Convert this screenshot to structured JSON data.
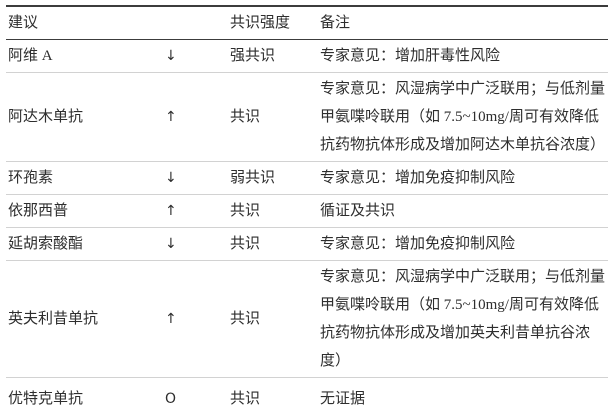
{
  "table": {
    "headers": {
      "recommendation": "建议",
      "direction": "",
      "strength": "共识强度",
      "remark": "备注"
    },
    "rows": [
      {
        "drug": "阿维 A",
        "direction": "↓",
        "strength": "强共识",
        "remark": "专家意见：增加肝毒性风险"
      },
      {
        "drug": "阿达木单抗",
        "direction": "↑",
        "strength": "共识",
        "remark": "专家意见：风湿病学中广泛联用；与低剂量甲氨喋呤联用（如 7.5~10mg/周可有效降低抗药物抗体形成及增加阿达木单抗谷浓度）"
      },
      {
        "drug": "环孢素",
        "direction": "↓",
        "strength": "弱共识",
        "remark": "专家意见：增加免疫抑制风险"
      },
      {
        "drug": "依那西普",
        "direction": "↑",
        "strength": "共识",
        "remark": "循证及共识"
      },
      {
        "drug": "延胡索酸酯",
        "direction": "↓",
        "strength": "共识",
        "remark": "专家意见：增加免疫抑制风险"
      },
      {
        "drug": "英夫利昔单抗",
        "direction": "↑",
        "strength": "共识",
        "remark": "专家意见：风湿病学中广泛联用；与低剂量甲氨喋呤联用（如 7.5~10mg/周可有效降低抗药物抗体形成及增加英夫利昔单抗谷浓度）"
      },
      {
        "drug": "优特克单抗",
        "direction": "O",
        "strength": "共识",
        "remark": "无证据"
      }
    ],
    "colors": {
      "text": "#2e2e2e",
      "heavy_rule": "#3c3c3c",
      "light_rule": "#d2d2d2",
      "background": "#ffffff"
    }
  }
}
